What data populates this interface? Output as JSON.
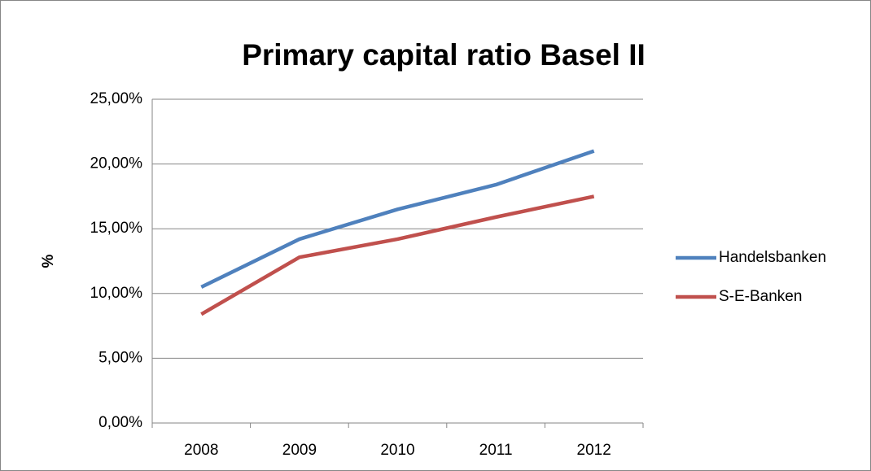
{
  "chart_data": {
    "type": "line",
    "title": "Primary capital ratio Basel II",
    "y_label": "%",
    "categories": [
      "2008",
      "2009",
      "2010",
      "2011",
      "2012"
    ],
    "series": [
      {
        "name": "Handelsbanken",
        "color": "#4f81bd",
        "values": [
          10.5,
          14.2,
          16.5,
          18.4,
          21.0
        ]
      },
      {
        "name": "S-E-Banken",
        "color": "#c0504d",
        "values": [
          8.4,
          12.8,
          14.2,
          15.9,
          17.5
        ]
      }
    ],
    "ylim": [
      0,
      25
    ],
    "yticks": [
      {
        "value": 0,
        "label": "0,00%"
      },
      {
        "value": 5,
        "label": "5,00%"
      },
      {
        "value": 10,
        "label": "10,00%"
      },
      {
        "value": 15,
        "label": "15,00%"
      },
      {
        "value": 20,
        "label": "20,00%"
      },
      {
        "value": 25,
        "label": "25,00%"
      }
    ],
    "grid": true,
    "legend": "right"
  }
}
